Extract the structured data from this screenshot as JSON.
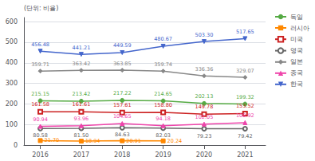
{
  "chart_data": {
    "type": "line",
    "ylabel": "(단위: 비율)",
    "x": [
      2016,
      2017,
      2018,
      2019,
      2020,
      2021
    ],
    "xlim": [
      2015.6,
      2021.5
    ],
    "xticks": [
      2016,
      2017,
      2018,
      2019,
      2020,
      2021
    ],
    "ylim": [
      0,
      620
    ],
    "yticks": [
      0,
      100,
      200,
      300,
      400,
      500,
      600
    ],
    "grid": true,
    "legend": "right",
    "data_labels": true,
    "series": [
      {
        "name": "독일",
        "color": "#55aa44",
        "marker": "circle",
        "values": [
          215.15,
          213.42,
          217.22,
          214.65,
          202.13,
          199.32
        ],
        "value_labels": [
          "215.15",
          "213.42",
          "217.22",
          "214.65",
          "202.13",
          "199.32"
        ]
      },
      {
        "name": "러시아",
        "color": "#ff8800",
        "marker": "square",
        "values": [
          21.7,
          18.94,
          20.91,
          20.24,
          null,
          null
        ],
        "value_labels": [
          "21.70",
          "18.94",
          "20.91",
          "20.24",
          null,
          null
        ]
      },
      {
        "name": "미국",
        "color": "#cc2222",
        "marker": "square-open",
        "values": [
          161.58,
          161.61,
          157.61,
          158.8,
          149.78,
          153.52
        ],
        "value_labels": [
          "161.58",
          "161.61",
          "157.61",
          "158.80",
          "149.78",
          "153.52"
        ]
      },
      {
        "name": "영국",
        "color": "#666666",
        "marker": "circle-open",
        "values": [
          80.58,
          81.5,
          84.63,
          82.03,
          79.23,
          79.42
        ],
        "value_labels": [
          "80.58",
          "81.50",
          "84.63",
          "82.03",
          "79.23",
          "79.42"
        ]
      },
      {
        "name": "일본",
        "color": "#888888",
        "marker": "diamond",
        "values": [
          359.71,
          363.42,
          363.85,
          359.74,
          336.36,
          329.07
        ],
        "value_labels": [
          "359.71",
          "363.42",
          "363.85",
          "359.74",
          "336.36",
          "329.07"
        ]
      },
      {
        "name": "중국",
        "color": "#ee44aa",
        "marker": "triangle",
        "values": [
          90.94,
          93.96,
          104.65,
          94.18,
          102.05,
          108.92
        ],
        "value_labels": [
          "90.94",
          "93.96",
          "104.65",
          "94.18",
          "102.05",
          "108.92"
        ]
      },
      {
        "name": "한국",
        "color": "#4466cc",
        "marker": "triangle-down",
        "values": [
          456.48,
          441.21,
          449.59,
          480.67,
          503.3,
          517.65
        ],
        "value_labels": [
          "456.48",
          "441.21",
          "449.59",
          "480.67",
          "503.30",
          "517.65"
        ]
      }
    ]
  }
}
